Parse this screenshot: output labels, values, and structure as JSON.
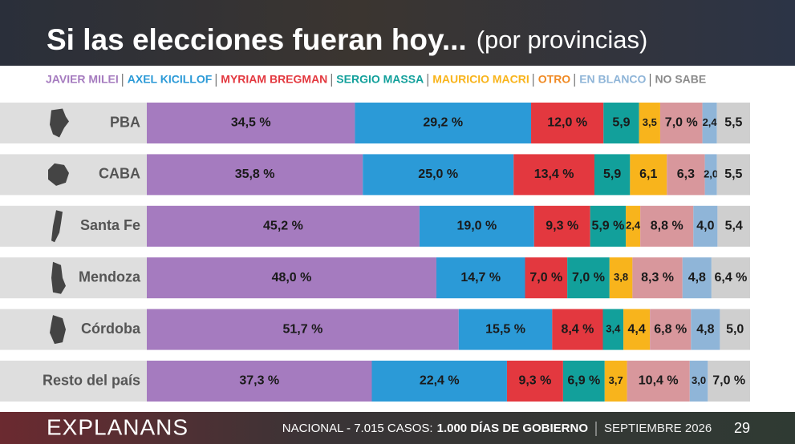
{
  "chart_data": {
    "type": "stacked-bar-horizontal",
    "title": "Si las elecciones fueran hoy...",
    "subtitle": "(por provincias)",
    "categories": [
      "PBA",
      "CABA",
      "Santa Fe",
      "Mendoza",
      "Córdoba",
      "Resto del país"
    ],
    "xlim": [
      0,
      100
    ],
    "series": [
      {
        "name": "JAVIER MILEI",
        "color": "#a57bbf",
        "label_color": "#a57bbf",
        "values": [
          34.5,
          35.8,
          45.2,
          48.0,
          51.7,
          37.3
        ],
        "value_labels": [
          "34,5 %",
          "35,8 %",
          "45,2 %",
          "48,0 %",
          "51,7 %",
          "37,3 %"
        ]
      },
      {
        "name": "AXEL KICILLOF",
        "color": "#2b9ad7",
        "label_color": "#2b9ad7",
        "values": [
          29.2,
          25.0,
          19.0,
          14.7,
          15.5,
          22.4
        ],
        "value_labels": [
          "29,2 %",
          "25,0 %",
          "19,0 %",
          "14,7 %",
          "15,5 %",
          "22,4 %"
        ]
      },
      {
        "name": "MYRIAM BREGMAN",
        "color": "#e3383f",
        "label_color": "#e3383f",
        "values": [
          12.0,
          13.4,
          9.3,
          7.0,
          8.4,
          9.3
        ],
        "value_labels": [
          "12,0 %",
          "13,4 %",
          "9,3 %",
          "7,0 %",
          "8,4 %",
          "9,3 %"
        ]
      },
      {
        "name": "SERGIO MASSA",
        "color": "#12a09b",
        "label_color": "#12a09b",
        "values": [
          5.9,
          5.9,
          5.9,
          7.0,
          3.4,
          6.9
        ],
        "value_labels": [
          "5,9",
          "5,9",
          "5,9 %",
          "7,0 %",
          "3,4",
          "6,9 %"
        ]
      },
      {
        "name": "MAURICIO MACRI",
        "color": "#f8b41c",
        "label_color": "#f8b41c",
        "values": [
          3.5,
          6.1,
          2.4,
          3.8,
          4.4,
          3.7
        ],
        "value_labels": [
          "3,5",
          "6,1",
          "2,4",
          "3,8",
          "4,4",
          "3,7"
        ]
      },
      {
        "name": "OTRO",
        "color": "#d8979c",
        "label_color": "#f08a24",
        "values": [
          7.0,
          6.3,
          8.8,
          8.3,
          6.8,
          10.4
        ],
        "value_labels": [
          "7,0 %",
          "6,3",
          "8,8 %",
          "8,3 %",
          "6,8 %",
          "10,4 %"
        ]
      },
      {
        "name": "EN BLANCO",
        "color": "#8fb5d8",
        "label_color": "#8fb5d8",
        "values": [
          2.4,
          2.0,
          4.0,
          4.8,
          4.8,
          3.0
        ],
        "value_labels": [
          "2,4",
          "2,0",
          "4,0",
          "4,8",
          "4,8",
          "3,0"
        ]
      },
      {
        "name": "NO SABE",
        "color": "#cfcfcf",
        "label_color": "#8a8a8a",
        "values": [
          5.5,
          5.5,
          5.4,
          6.4,
          5.0,
          7.0
        ],
        "value_labels": [
          "5,5",
          "5,5",
          "5,4",
          "6,4 %",
          "5,0",
          "7,0 %"
        ]
      }
    ]
  },
  "footer": {
    "brand": "EXPLANANS",
    "sample": "NACIONAL - 7.015 CASOS:",
    "topic": "1.000 DÍAS DE GOBIERNO",
    "date": "SEPTIEMBRE 2026",
    "page": "29"
  }
}
